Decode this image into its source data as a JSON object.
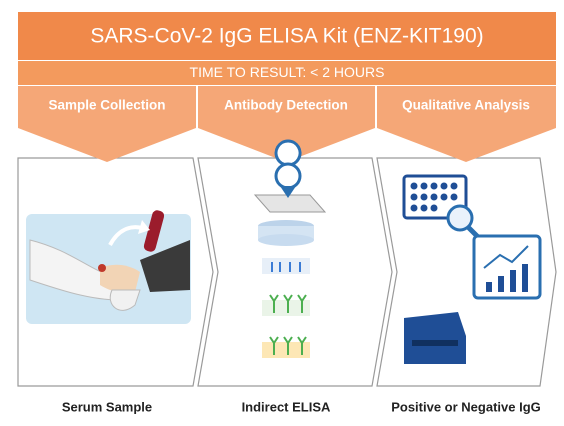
{
  "header": {
    "title": "SARS-CoV-2 IgG ELISA Kit (ENZ-KIT190)",
    "subtitle": "TIME TO RESULT: < 2 HOURS"
  },
  "steps": [
    {
      "heading": "Sample Collection",
      "result": "Serum Sample"
    },
    {
      "heading": "Antibody Detection",
      "result": "Indirect ELISA"
    },
    {
      "heading": "Qualitative Analysis",
      "result": "Positive or Negative IgG"
    }
  ]
}
